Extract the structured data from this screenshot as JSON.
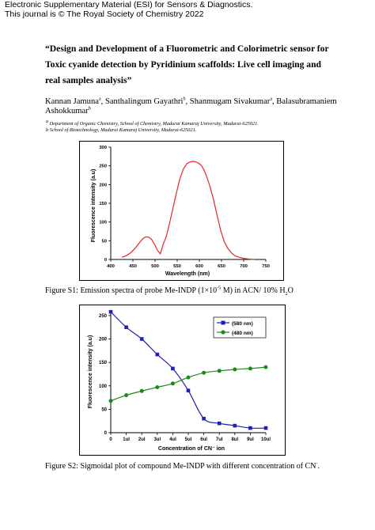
{
  "header": {
    "line1": "Electronic Supplementary Material (ESI) for Sensors & Diagnostics.",
    "line2": "This journal is © The Royal Society of Chemistry 2022"
  },
  "title": "“Design and Development of a Fluorometric and Colorimetric sensor for Toxic cyanide detection by Pyridinium scaffolds: Live cell imaging and real samples analysis”",
  "authors": [
    {
      "name": "Kannan Jamuna",
      "sup": "a",
      "sep": ",  "
    },
    {
      "name": "Santhalingum Gayathri",
      "sup": "b",
      "sep": ",  "
    },
    {
      "name": "Shanmugam Sivakumar",
      "sup": "a",
      "sep": ", "
    },
    {
      "name": "Balasubramaniem Ashokkumar",
      "sup": "b",
      "sep": ""
    }
  ],
  "affiliations": [
    {
      "sup": "a",
      "text": " Department of Organic Chemistry, School of Chemistry, Madurai Kamaraj University, Madurai-625021."
    },
    {
      "sup": "",
      "text": "b School of Biotechnology, Madurai Kamaraj University, Madurai-625021."
    }
  ],
  "figure1": {
    "caption": {
      "prefix": "Figure S1: Emission spectra of probe Me-INDP (1×10",
      "exp": "-5",
      "middle": " M) in ACN/ 10% H",
      "sub": "2",
      "suffix": "O"
    }
  },
  "figure2": {
    "caption": {
      "prefix": "Figure S2: Sigmoidal plot of compound Me-INDP with different concentration of CN",
      "sup": "-",
      "suffix": "."
    }
  },
  "chart_data": [
    {
      "type": "line",
      "xlabel": "Wavelength (nm)",
      "ylabel": "Fluorescence intensity (a.u)",
      "xlim": [
        400,
        750
      ],
      "ylim": [
        0,
        300
      ],
      "xticks": [
        400,
        450,
        500,
        550,
        600,
        650,
        700,
        750
      ],
      "yticks": [
        0,
        50,
        100,
        150,
        200,
        250,
        300
      ],
      "grid": false,
      "color": "#e8262a",
      "x": [
        425,
        435,
        445,
        455,
        465,
        472,
        478,
        485,
        492,
        500,
        505,
        512,
        518,
        525,
        532,
        540,
        548,
        556,
        564,
        572,
        580,
        587,
        593,
        598,
        604,
        610,
        617,
        624,
        632,
        640,
        648,
        656,
        664,
        672,
        680,
        690,
        700,
        712,
        725
      ],
      "y": [
        6,
        10,
        18,
        30,
        45,
        55,
        60,
        60,
        54,
        38,
        25,
        15,
        40,
        60,
        93,
        135,
        177,
        216,
        242,
        256,
        261,
        262,
        260,
        257,
        252,
        240,
        220,
        195,
        160,
        118,
        78,
        48,
        30,
        18,
        10,
        6,
        3,
        1,
        0
      ]
    },
    {
      "type": "line",
      "xlabel": "Concentration of CN⁻ ion",
      "ylabel": "Fluorescence intensity (a.u)",
      "categories": [
        "0",
        "1ul",
        "2ul",
        "3ul",
        "4ul",
        "5ul",
        "6ul",
        "7ul",
        "8ul",
        "9ul",
        "10ul"
      ],
      "x": [
        0,
        1,
        2,
        3,
        4,
        5,
        6,
        7,
        8,
        9,
        10
      ],
      "xlim": [
        0,
        10
      ],
      "ylim": [
        0,
        260
      ],
      "yticks": [
        0,
        50,
        100,
        150,
        200,
        250
      ],
      "legend_position": "top-right",
      "series": [
        {
          "name": "(580 nm)",
          "color": "#1f1fb4",
          "marker": "square",
          "values": [
            258,
            225,
            200,
            167,
            137,
            90,
            30,
            20,
            15,
            10,
            10
          ]
        },
        {
          "name": "(480 nm)",
          "color": "#1a8a1a",
          "marker": "circle",
          "values": [
            68,
            80,
            89,
            97,
            105,
            118,
            128,
            132,
            135,
            137,
            140
          ]
        }
      ]
    }
  ]
}
